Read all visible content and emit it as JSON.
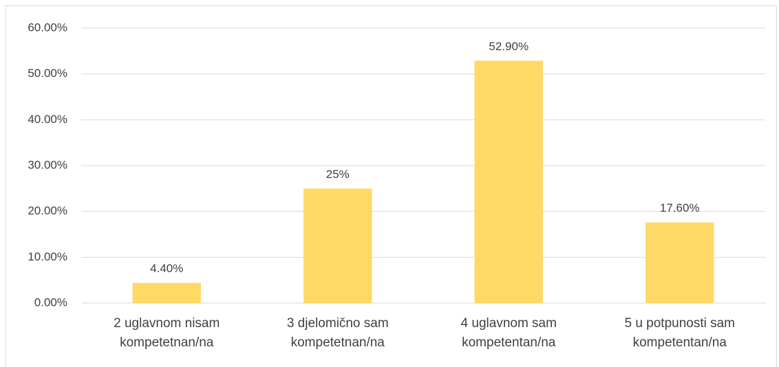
{
  "chart_data": {
    "type": "bar",
    "categories": [
      "2 uglavnom nisam kompetetnan/na",
      "3 djelomično sam kompetetnan/na",
      "4 uglavnom sam kompetentan/na",
      "5 u potpunosti sam kompetentan/na"
    ],
    "values": [
      4.4,
      25,
      52.9,
      17.6
    ],
    "value_labels": [
      "4.40%",
      "25%",
      "52.90%",
      "17.60%"
    ],
    "color": "#ffd966",
    "ylim": [
      0,
      60
    ],
    "yticks": [
      {
        "value": 0,
        "label": "0.00%"
      },
      {
        "value": 10,
        "label": "10.00%"
      },
      {
        "value": 20,
        "label": "20.00%"
      },
      {
        "value": 30,
        "label": "30.00%"
      },
      {
        "value": 40,
        "label": "40.00%"
      },
      {
        "value": 50,
        "label": "50.00%"
      },
      {
        "value": 60,
        "label": "60.00%"
      }
    ],
    "grid": true
  }
}
